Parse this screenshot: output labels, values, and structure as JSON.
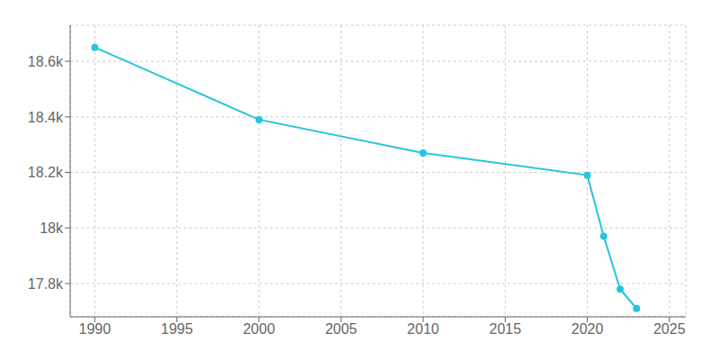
{
  "chart_data": {
    "type": "line",
    "x": [
      1990,
      2000,
      2010,
      2020,
      2021,
      2022,
      2023
    ],
    "values": [
      18650,
      18390,
      18270,
      18190,
      17970,
      17780,
      17710
    ],
    "color": "#26C6DA",
    "marker": "circle",
    "xlim": [
      1988.5,
      2026
    ],
    "xticks": [
      1990,
      1995,
      2000,
      2005,
      2010,
      2015,
      2020,
      2025
    ],
    "ylim": [
      17680,
      18730
    ],
    "yticks": [
      {
        "value": 17800,
        "label": "17.8k"
      },
      {
        "value": 18000,
        "label": "18k"
      },
      {
        "value": 18200,
        "label": "18.2k"
      },
      {
        "value": 18400,
        "label": "18.4k"
      },
      {
        "value": 18600,
        "label": "18.6k"
      }
    ],
    "grid": true
  }
}
